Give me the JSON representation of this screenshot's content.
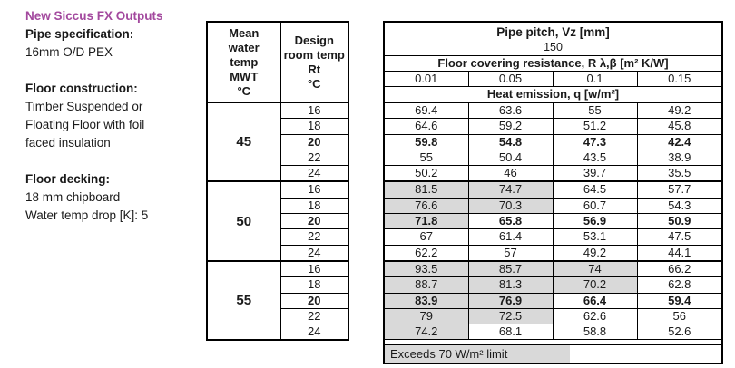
{
  "colors": {
    "accent_purple": "#a3499e",
    "highlight_gray": "#d9d9d9"
  },
  "info_panel": {
    "title": "New Siccus FX Outputs",
    "sections": [
      {
        "heading": "Pipe specification:",
        "lines": [
          "16mm O/D PEX"
        ]
      },
      {
        "heading": "Floor construction:",
        "lines": [
          "Timber Suspended or",
          "Floating Floor with foil",
          "faced insulation"
        ]
      },
      {
        "heading": "Floor decking:",
        "lines": [
          "18 mm chipboard",
          "Water temp drop [K]: 5"
        ]
      }
    ]
  },
  "table": {
    "header": {
      "mean_water_temp": "Mean\nwater\ntemp\nMWT\n°C",
      "design_room_temp": "Design\nroom temp\nRt\n°C",
      "pipe_pitch_label": "Pipe pitch, Vz [mm]",
      "pipe_pitch_value": "150",
      "resistance_label": "Floor covering resistance, R λ,β [m² K/W]",
      "resistance_values": [
        "0.01",
        "0.05",
        "0.1",
        "0.15"
      ],
      "heat_emission_label": "Heat emission, q [w/m²]"
    },
    "highlight_threshold": 70,
    "groups": [
      {
        "mwt": "45",
        "rows": [
          {
            "rt": "16",
            "bold": false,
            "values": [
              "69.4",
              "63.6",
              "55",
              "49.2"
            ]
          },
          {
            "rt": "18",
            "bold": false,
            "values": [
              "64.6",
              "59.2",
              "51.2",
              "45.8"
            ]
          },
          {
            "rt": "20",
            "bold": true,
            "values": [
              "59.8",
              "54.8",
              "47.3",
              "42.4"
            ]
          },
          {
            "rt": "22",
            "bold": false,
            "values": [
              "55",
              "50.4",
              "43.5",
              "38.9"
            ]
          },
          {
            "rt": "24",
            "bold": false,
            "values": [
              "50.2",
              "46",
              "39.7",
              "35.5"
            ]
          }
        ]
      },
      {
        "mwt": "50",
        "rows": [
          {
            "rt": "16",
            "bold": false,
            "values": [
              "81.5",
              "74.7",
              "64.5",
              "57.7"
            ]
          },
          {
            "rt": "18",
            "bold": false,
            "values": [
              "76.6",
              "70.3",
              "60.7",
              "54.3"
            ]
          },
          {
            "rt": "20",
            "bold": true,
            "values": [
              "71.8",
              "65.8",
              "56.9",
              "50.9"
            ]
          },
          {
            "rt": "22",
            "bold": false,
            "values": [
              "67",
              "61.4",
              "53.1",
              "47.5"
            ]
          },
          {
            "rt": "24",
            "bold": false,
            "values": [
              "62.2",
              "57",
              "49.2",
              "44.1"
            ]
          }
        ]
      },
      {
        "mwt": "55",
        "rows": [
          {
            "rt": "16",
            "bold": false,
            "values": [
              "93.5",
              "85.7",
              "74",
              "66.2"
            ]
          },
          {
            "rt": "18",
            "bold": false,
            "values": [
              "88.7",
              "81.3",
              "70.2",
              "62.8"
            ]
          },
          {
            "rt": "20",
            "bold": true,
            "values": [
              "83.9",
              "76.9",
              "66.4",
              "59.4"
            ]
          },
          {
            "rt": "22",
            "bold": false,
            "values": [
              "79",
              "72.5",
              "62.6",
              "56"
            ]
          },
          {
            "rt": "24",
            "bold": false,
            "values": [
              "74.2",
              "68.1",
              "58.8",
              "52.6"
            ]
          }
        ]
      }
    ],
    "legend": "Exceeds 70 W/m² limit"
  }
}
